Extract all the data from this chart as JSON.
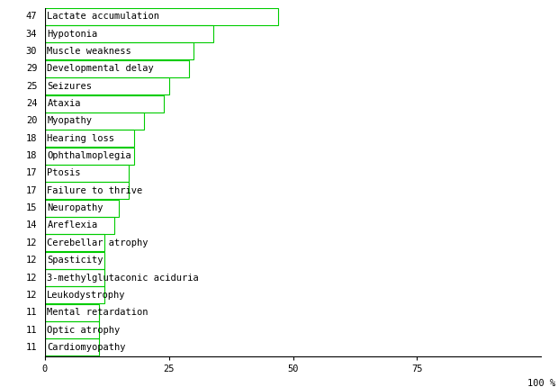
{
  "categories": [
    "Lactate accumulation",
    "Hypotonia",
    "Muscle weakness",
    "Developmental delay",
    "Seizures",
    "Ataxia",
    "Myopathy",
    "Hearing loss",
    "Ophthalmoplegia",
    "Ptosis",
    "Failure to thrive",
    "Neuropathy",
    "Areflexia",
    "Cerebellar atrophy",
    "Spasticity",
    "3-methylglutaconic aciduria",
    "Leukodystrophy",
    "Mental retardation",
    "Optic atrophy",
    "Cardiomyopathy"
  ],
  "values": [
    47,
    34,
    30,
    29,
    25,
    24,
    20,
    18,
    18,
    17,
    17,
    15,
    14,
    12,
    12,
    12,
    12,
    11,
    11,
    11
  ],
  "bar_color": "#00cc00",
  "background_color": "#ffffff",
  "text_color": "#000000",
  "xlim": [
    0,
    100
  ],
  "xticks": [
    0,
    25,
    50,
    75
  ],
  "bar_height": 0.98,
  "label_fontsize": 7.5,
  "tick_fontsize": 7.5,
  "value_fontsize": 7.5,
  "font_family": "monospace",
  "figwidth": 6.2,
  "figheight": 4.3,
  "dpi": 100
}
